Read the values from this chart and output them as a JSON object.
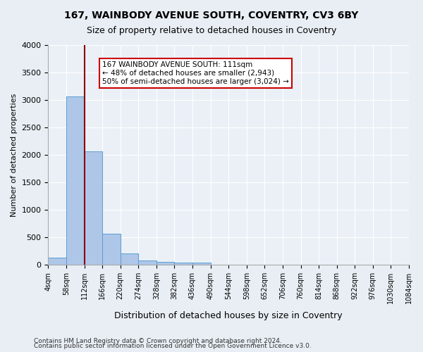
{
  "title1": "167, WAINBODY AVENUE SOUTH, COVENTRY, CV3 6BY",
  "title2": "Size of property relative to detached houses in Coventry",
  "xlabel": "Distribution of detached houses by size in Coventry",
  "ylabel": "Number of detached properties",
  "bin_edges": [
    4,
    58,
    112,
    166,
    220,
    274,
    328,
    382,
    436,
    490,
    544,
    598,
    652,
    706,
    760,
    814,
    868,
    922,
    976,
    1030,
    1084
  ],
  "bin_labels": [
    "4sqm",
    "58sqm",
    "112sqm",
    "166sqm",
    "220sqm",
    "274sqm",
    "328sqm",
    "382sqm",
    "436sqm",
    "490sqm",
    "544sqm",
    "598sqm",
    "652sqm",
    "706sqm",
    "760sqm",
    "814sqm",
    "868sqm",
    "922sqm",
    "976sqm",
    "1030sqm",
    "1084sqm"
  ],
  "bar_values": [
    130,
    3060,
    2060,
    560,
    200,
    75,
    55,
    40,
    40,
    0,
    0,
    0,
    0,
    0,
    0,
    0,
    0,
    0,
    0,
    0
  ],
  "bar_color": "#aec6e8",
  "bar_edge_color": "#5a9fd4",
  "vline_x": 2,
  "vline_color": "#8b0000",
  "annotation_text": "167 WAINBODY AVENUE SOUTH: 111sqm\n← 48% of detached houses are smaller (2,943)\n50% of semi-detached houses are larger (3,024) →",
  "annotation_box_color": "#ffffff",
  "annotation_box_edge_color": "#cc0000",
  "ylim": [
    0,
    4000
  ],
  "yticks": [
    0,
    500,
    1000,
    1500,
    2000,
    2500,
    3000,
    3500,
    4000
  ],
  "footer1": "Contains HM Land Registry data © Crown copyright and database right 2024.",
  "footer2": "Contains public sector information licensed under the Open Government Licence v3.0.",
  "bg_color": "#e8eef4",
  "plot_bg_color": "#eaf0f6"
}
